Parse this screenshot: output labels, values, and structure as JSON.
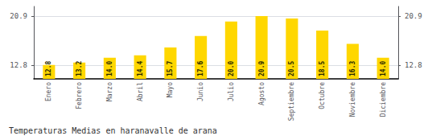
{
  "chart_data": {
    "type": "bar",
    "title": "Temperaturas Medias en haranavalle de arana",
    "categories": [
      "Enero",
      "Febrero",
      "Marzo",
      "Abril",
      "Mayo",
      "Junio",
      "Julio",
      "Agosto",
      "Septiembre",
      "Octubre",
      "Noviembre",
      "Diciembre"
    ],
    "values": [
      12.8,
      13.2,
      14.0,
      14.4,
      15.7,
      17.6,
      20.0,
      20.9,
      20.5,
      18.5,
      16.3,
      14.0
    ],
    "value_labels": [
      "12.8",
      "13.2",
      "14.0",
      "14.4",
      "15.7",
      "17.6",
      "20.0",
      "20.9",
      "20.5",
      "18.5",
      "16.3",
      "14.0"
    ],
    "color": "#FFD700",
    "ylim": [
      10.5,
      22.5
    ],
    "yticks": [
      12.8,
      20.9
    ],
    "y2lim": [
      10.5,
      22.5
    ],
    "y2ticks": [
      12.8,
      20.9
    ],
    "grid": true,
    "data_labels": true
  }
}
